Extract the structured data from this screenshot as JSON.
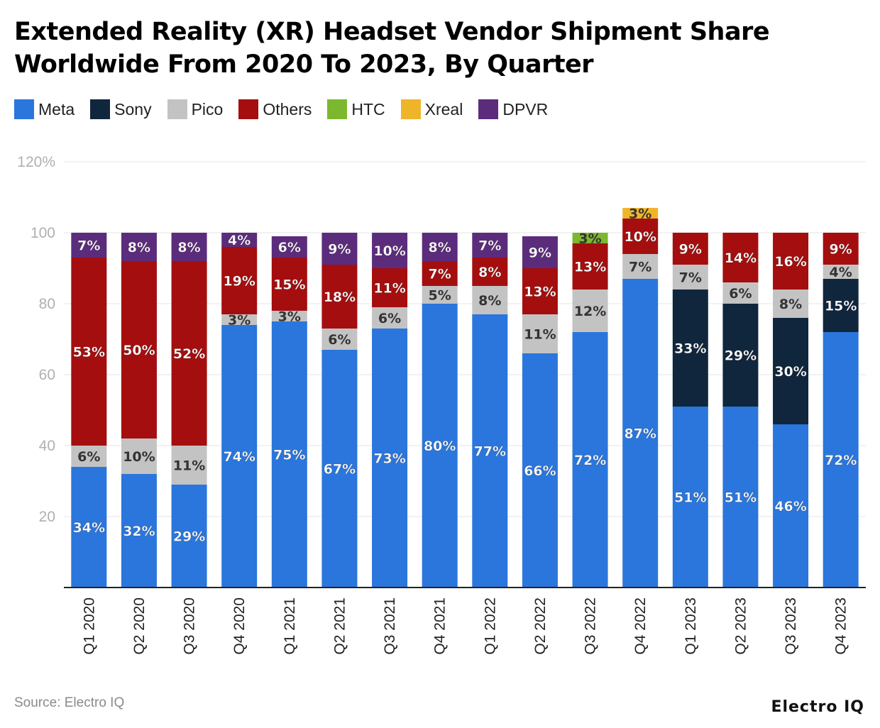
{
  "chart_data": {
    "type": "bar",
    "stacked": true,
    "title": "Extended Reality (XR) Headset Vendor Shipment Share Worldwide From 2020 To 2023, By Quarter",
    "categories": [
      "Q1 2020",
      "Q2 2020",
      "Q3 2020",
      "Q4 2020",
      "Q1 2021",
      "Q2 2021",
      "Q3 2021",
      "Q4 2021",
      "Q1 2022",
      "Q2 2022",
      "Q3 2022",
      "Q4 2022",
      "Q1 2023",
      "Q2 2023",
      "Q3 2023",
      "Q4 2023"
    ],
    "series": [
      {
        "name": "Meta",
        "color": "#2a76dd",
        "values": [
          34,
          32,
          29,
          74,
          75,
          67,
          73,
          80,
          77,
          66,
          72,
          87,
          51,
          51,
          46,
          72
        ]
      },
      {
        "name": "Sony",
        "color": "#10263d",
        "values": [
          0,
          0,
          0,
          0,
          0,
          0,
          0,
          0,
          0,
          0,
          0,
          0,
          33,
          29,
          30,
          15
        ]
      },
      {
        "name": "Pico",
        "color": "#c3c3c3",
        "values": [
          6,
          10,
          11,
          3,
          3,
          6,
          6,
          5,
          8,
          11,
          12,
          7,
          7,
          6,
          8,
          4
        ]
      },
      {
        "name": "Others",
        "color": "#a50e0e",
        "values": [
          53,
          50,
          52,
          19,
          15,
          18,
          11,
          7,
          8,
          13,
          13,
          10,
          9,
          14,
          16,
          9
        ]
      },
      {
        "name": "HTC",
        "color": "#7cb82f",
        "values": [
          0,
          0,
          0,
          0,
          0,
          0,
          0,
          0,
          0,
          0,
          3,
          0,
          0,
          0,
          0,
          0
        ]
      },
      {
        "name": "Xreal",
        "color": "#efb52a",
        "values": [
          0,
          0,
          0,
          0,
          0,
          0,
          0,
          0,
          0,
          0,
          0,
          3,
          0,
          0,
          0,
          0
        ]
      },
      {
        "name": "DPVR",
        "color": "#5c2c7c",
        "values": [
          7,
          8,
          8,
          4,
          6,
          9,
          10,
          8,
          7,
          9,
          0,
          0,
          0,
          0,
          0,
          0
        ]
      }
    ],
    "ylim": [
      0,
      120
    ],
    "yticks": [
      "20",
      "40",
      "60",
      "80",
      "100",
      "120%"
    ],
    "ytick_values": [
      20,
      40,
      60,
      80,
      100,
      120
    ],
    "grid": true,
    "legend": "top-left"
  },
  "footer": {
    "source": "Source: Electro IQ",
    "brand": "Electro IQ"
  }
}
